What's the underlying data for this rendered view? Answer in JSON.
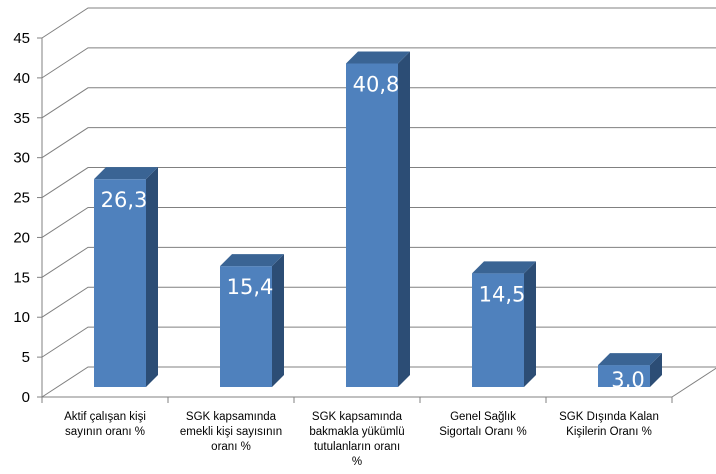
{
  "chart_data": {
    "type": "bar",
    "style": "3d-column",
    "categories": [
      [
        "Aktif çalışan kişi",
        "sayının oranı %"
      ],
      [
        "SGK kapsamında",
        "emekli kişi sayısının",
        "oranı %"
      ],
      [
        "SGK kapsamında",
        "bakmakla yükümlü",
        "tutulanların oranı",
        "%"
      ],
      [
        "Genel Sağlık",
        "Sigortalı Oranı %"
      ],
      [
        "SGK Dışında Kalan",
        "Kişilerin Oranı %"
      ]
    ],
    "values": [
      26.3,
      15.4,
      40.8,
      14.5,
      3.0
    ],
    "data_labels": [
      "26,3",
      "15,4",
      "40,8",
      "14,5",
      "3,0"
    ],
    "y_ticks": [
      "0",
      "5",
      "10",
      "15",
      "20",
      "25",
      "30",
      "35",
      "40",
      "45"
    ],
    "ylim": [
      0,
      45
    ],
    "grid": true,
    "legend": "none",
    "colors": {
      "front": "#4f81bd",
      "side": "#2c4d75",
      "top": "#3a6494",
      "grid": "#808080"
    }
  }
}
